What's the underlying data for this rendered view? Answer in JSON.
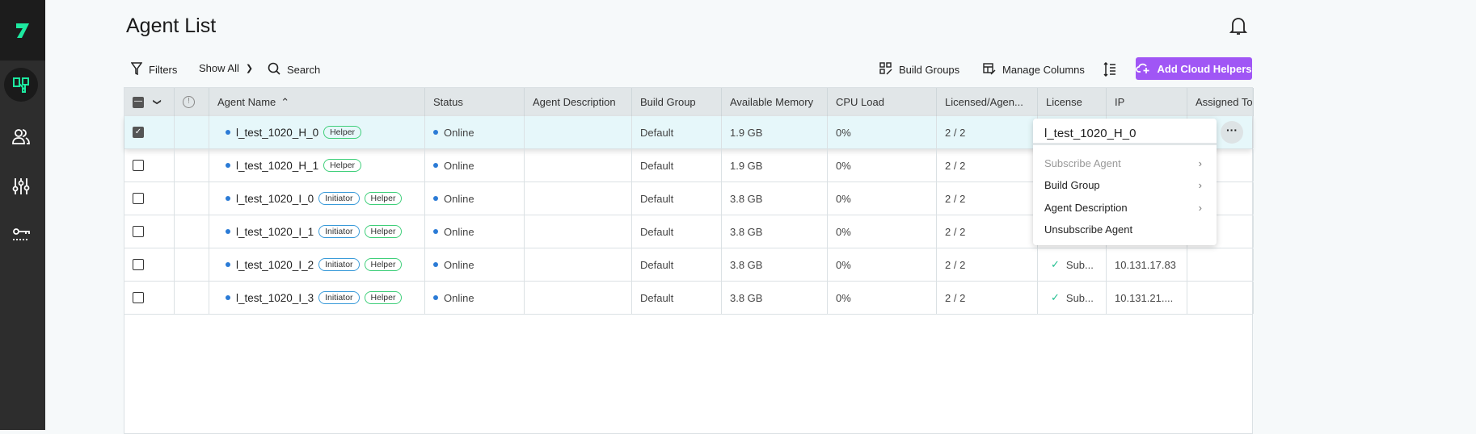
{
  "header": {
    "title": "Agent List"
  },
  "toolbar": {
    "filters": "Filters",
    "show_all": "Show All",
    "search": "Search",
    "build_groups": "Build Groups",
    "manage_columns": "Manage Columns",
    "add_cloud_helpers": "Add Cloud Helpers"
  },
  "colors": {
    "accent": "#a056f5",
    "brand": "#1de9a0",
    "online": "#2b7bd6",
    "row_selected": "#e6f7fa"
  },
  "columns": [
    "Agent Name",
    "Status",
    "Agent Description",
    "Build Group",
    "Available Memory",
    "CPU Load",
    "Licensed/Agen...",
    "License",
    "IP",
    "Assigned To"
  ],
  "rows": [
    {
      "name": "l_test_1020_H_0",
      "tags": [
        "Helper"
      ],
      "status": "Online",
      "desc": "",
      "group": "Default",
      "mem": "1.9 GB",
      "cpu": "0%",
      "licensed": "2 / 2",
      "license": "",
      "ip": "",
      "checked": true
    },
    {
      "name": "l_test_1020_H_1",
      "tags": [
        "Helper"
      ],
      "status": "Online",
      "desc": "",
      "group": "Default",
      "mem": "1.9 GB",
      "cpu": "0%",
      "licensed": "2 / 2",
      "license": "",
      "ip": "",
      "checked": false
    },
    {
      "name": "l_test_1020_I_0",
      "tags": [
        "Initiator",
        "Helper"
      ],
      "status": "Online",
      "desc": "",
      "group": "Default",
      "mem": "3.8 GB",
      "cpu": "0%",
      "licensed": "2 / 2",
      "license": "",
      "ip": "",
      "checked": false
    },
    {
      "name": "l_test_1020_I_1",
      "tags": [
        "Initiator",
        "Helper"
      ],
      "status": "Online",
      "desc": "",
      "group": "Default",
      "mem": "3.8 GB",
      "cpu": "0%",
      "licensed": "2 / 2",
      "license": "",
      "ip": "",
      "checked": false
    },
    {
      "name": "l_test_1020_I_2",
      "tags": [
        "Initiator",
        "Helper"
      ],
      "status": "Online",
      "desc": "",
      "group": "Default",
      "mem": "3.8 GB",
      "cpu": "0%",
      "licensed": "2 / 2",
      "license": "Sub...",
      "ip": "10.131.17.83",
      "checked": false
    },
    {
      "name": "l_test_1020_I_3",
      "tags": [
        "Initiator",
        "Helper"
      ],
      "status": "Online",
      "desc": "",
      "group": "Default",
      "mem": "3.8 GB",
      "cpu": "0%",
      "licensed": "2 / 2",
      "license": "Sub...",
      "ip": "10.131.21....",
      "checked": false
    }
  ],
  "context_menu": {
    "title": "l_test_1020_H_0",
    "items": [
      {
        "label": "Subscribe Agent",
        "disabled": true,
        "submenu": true
      },
      {
        "label": "Build Group",
        "disabled": false,
        "submenu": true
      },
      {
        "label": "Agent Description",
        "disabled": false,
        "submenu": true
      },
      {
        "label": "Unsubscribe Agent",
        "disabled": false,
        "submenu": false
      }
    ]
  },
  "icons": [
    "logo",
    "agents-icon",
    "users-icon",
    "sliders-icon",
    "key-icon",
    "bell-icon",
    "filter-icon",
    "search-icon",
    "build-groups-icon",
    "manage-columns-icon",
    "row-density-icon",
    "cloud-plus-icon",
    "more-icon"
  ]
}
